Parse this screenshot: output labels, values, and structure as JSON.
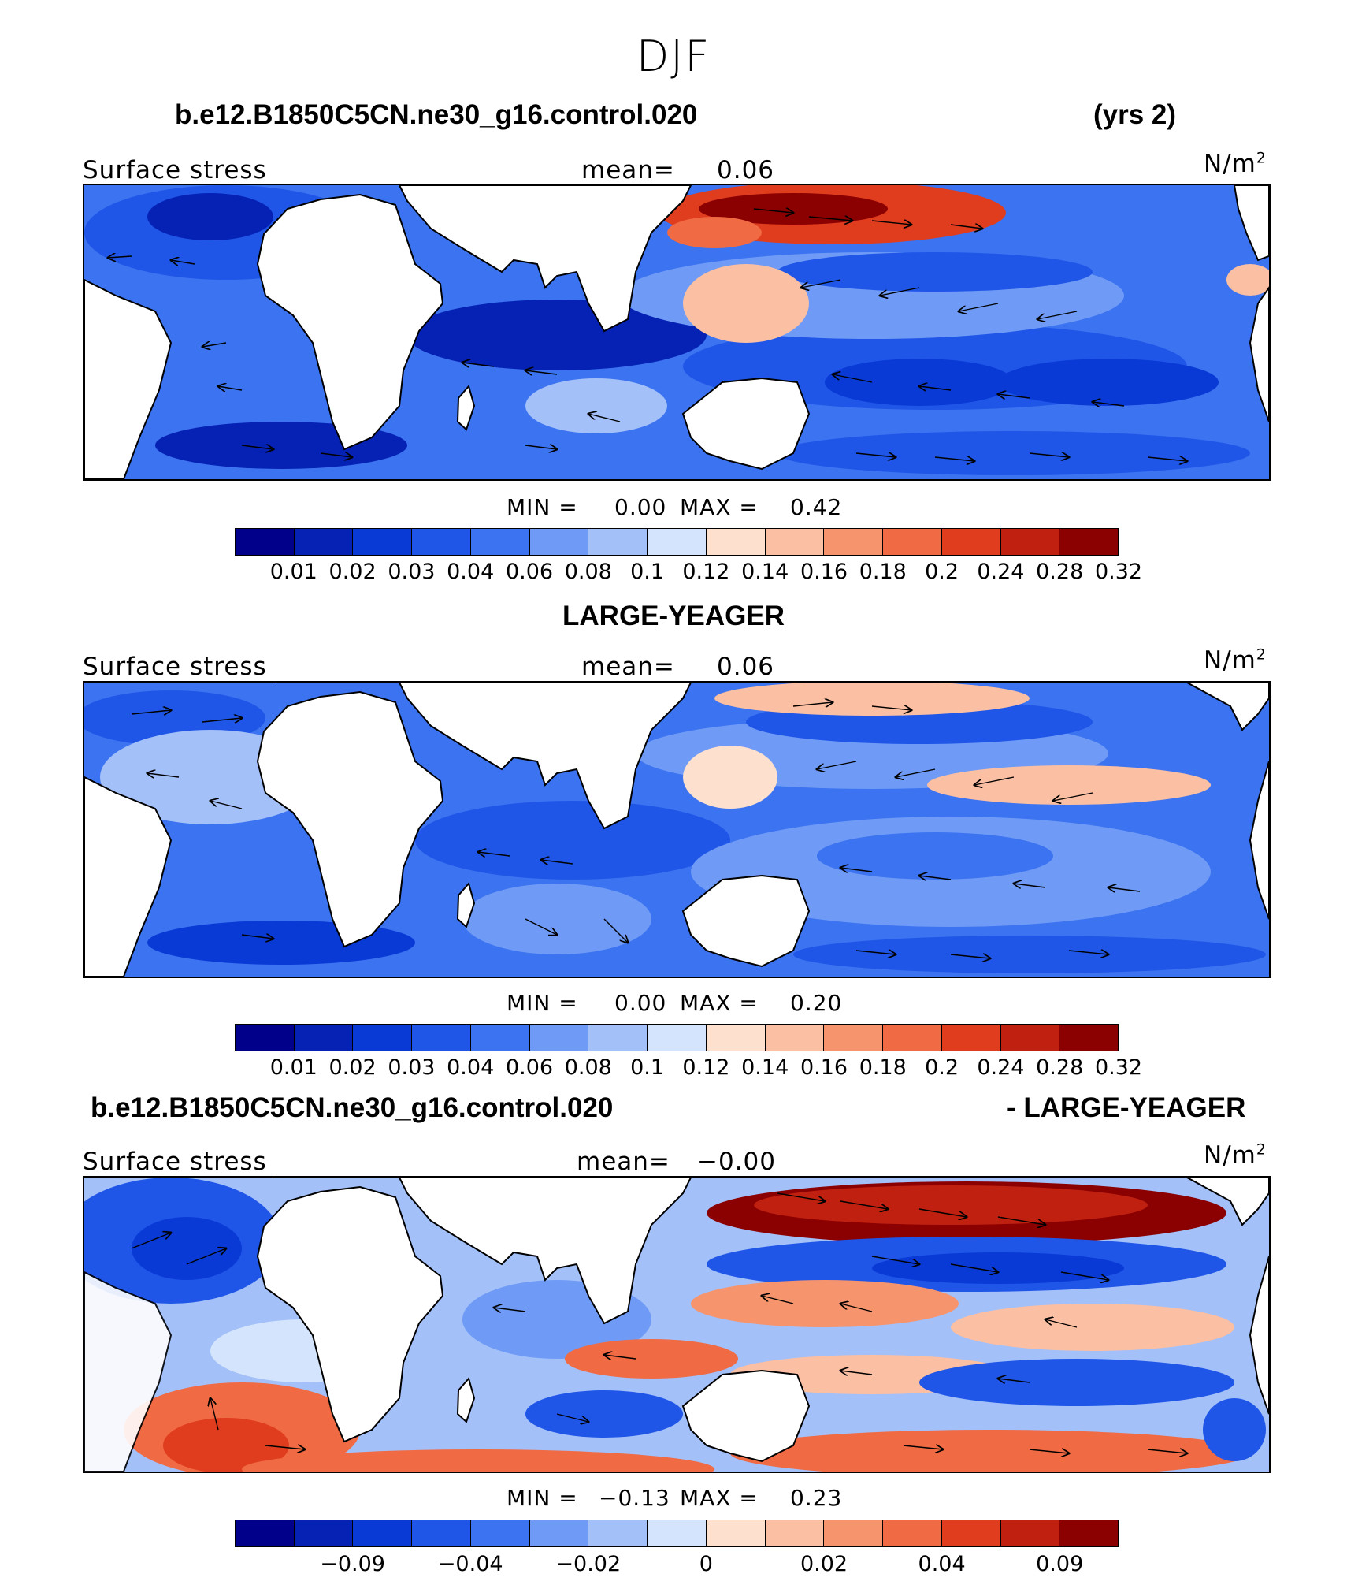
{
  "suptitle": "DJF",
  "colorbar_colors": [
    "#00008b",
    "#0622b5",
    "#0a3ad6",
    "#1f56e8",
    "#3c73f0",
    "#6f9bf6",
    "#a3c0f9",
    "#d4e4fc",
    "#fde0cd",
    "#fbbfa3",
    "#f6946d",
    "#f06a43",
    "#e03c1e",
    "#c02010",
    "#8b0000"
  ],
  "land_color": "#ffffff",
  "panels": [
    {
      "title_left": "b.e12.B1850C5CN.ne30_g16.control.020",
      "title_right": "(yrs 2)",
      "variable": "Surface stress",
      "mean_label": "mean=",
      "mean_value": "0.06",
      "units": "N/m",
      "units_sup": "2",
      "min_label": "MIN =",
      "min_value": "0.00",
      "max_label": "MAX =",
      "max_value": "0.42",
      "ticks": [
        "0.01",
        "0.02",
        "0.03",
        "0.04",
        "0.06",
        "0.08",
        "0.1",
        "0.12",
        "0.14",
        "0.16",
        "0.18",
        "0.2",
        "0.24",
        "0.28",
        "0.32"
      ]
    },
    {
      "title_center": "LARGE-YEAGER",
      "variable": "Surface stress",
      "mean_label": "mean=",
      "mean_value": "0.06",
      "units": "N/m",
      "units_sup": "2",
      "min_label": "MIN =",
      "min_value": "0.00",
      "max_label": "MAX =",
      "max_value": "0.20",
      "ticks": [
        "0.01",
        "0.02",
        "0.03",
        "0.04",
        "0.06",
        "0.08",
        "0.1",
        "0.12",
        "0.14",
        "0.16",
        "0.18",
        "0.2",
        "0.24",
        "0.28",
        "0.32"
      ]
    },
    {
      "title_left": "b.e12.B1850C5CN.ne30_g16.control.020",
      "title_right": "- LARGE-YEAGER",
      "variable": "Surface stress",
      "mean_label": "mean=",
      "mean_value": "−0.00",
      "units": "N/m",
      "units_sup": "2",
      "min_label": "MIN =",
      "min_value": "−0.13",
      "max_label": "MAX =",
      "max_value": "0.23",
      "ticks": [
        "−0.09",
        "−0.04",
        "−0.02",
        "0",
        "0.02",
        "0.04",
        "0.09"
      ]
    }
  ]
}
